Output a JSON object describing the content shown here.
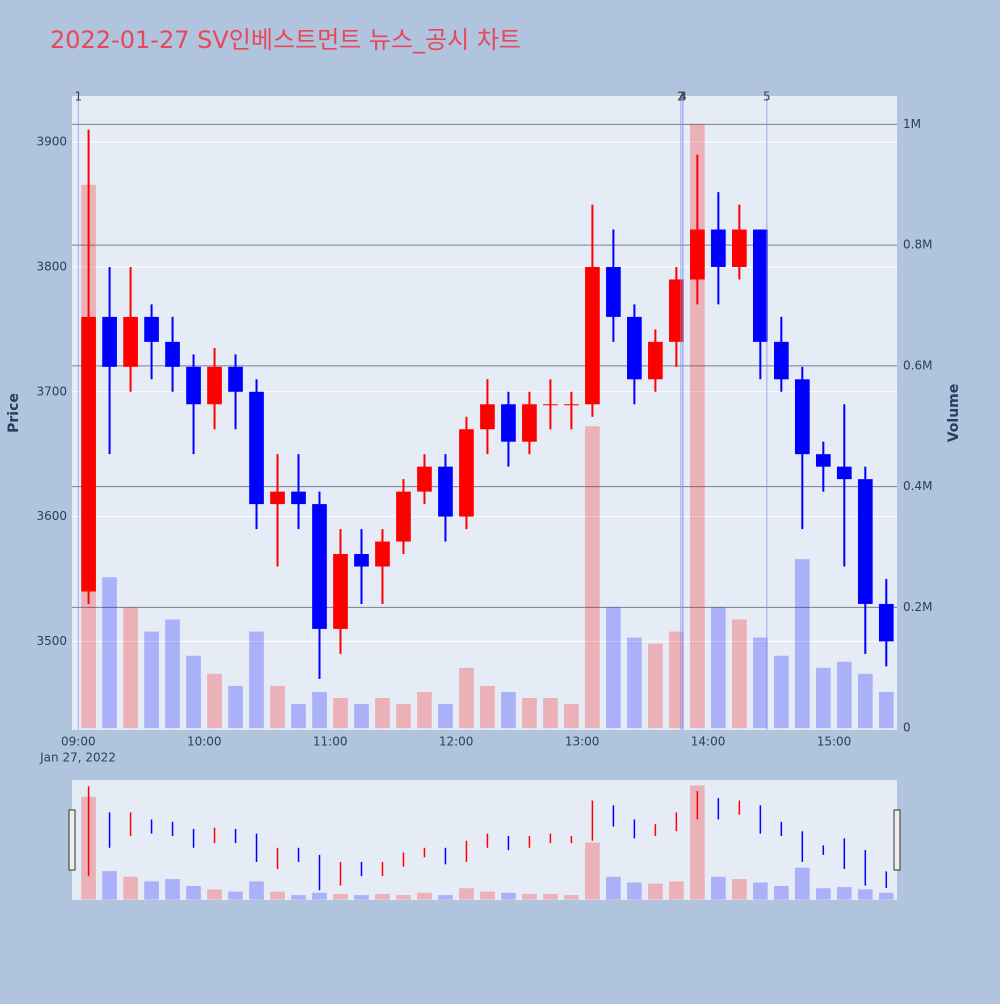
{
  "chart_data": {
    "type": "candlestick",
    "title": "2022-01-27 SV인베스트먼트 뉴스_공시 차트",
    "y_label": "Price",
    "y2_label": "Volume",
    "date_label": "Jan 27, 2022",
    "x": [
      "09:00",
      "09:10",
      "09:20",
      "09:30",
      "09:40",
      "09:50",
      "10:00",
      "10:10",
      "10:20",
      "10:30",
      "10:40",
      "10:50",
      "11:00",
      "11:10",
      "11:20",
      "11:30",
      "11:40",
      "11:50",
      "12:00",
      "12:10",
      "12:20",
      "12:30",
      "12:40",
      "12:50",
      "13:00",
      "13:10",
      "13:20",
      "13:30",
      "13:40",
      "13:50",
      "14:00",
      "14:10",
      "14:20",
      "14:30",
      "14:40",
      "14:50",
      "15:00",
      "15:10",
      "15:20"
    ],
    "open": [
      3540,
      3760,
      3720,
      3760,
      3740,
      3720,
      3690,
      3720,
      3700,
      3610,
      3620,
      3610,
      3510,
      3570,
      3560,
      3580,
      3620,
      3640,
      3600,
      3670,
      3690,
      3660,
      3690,
      3690,
      3690,
      3800,
      3760,
      3710,
      3740,
      3790,
      3830,
      3800,
      3830,
      3740,
      3710,
      3650,
      3640,
      3630,
      3530
    ],
    "high": [
      3910,
      3800,
      3800,
      3770,
      3760,
      3730,
      3735,
      3730,
      3710,
      3650,
      3650,
      3620,
      3590,
      3590,
      3590,
      3630,
      3650,
      3650,
      3680,
      3710,
      3700,
      3700,
      3710,
      3700,
      3850,
      3830,
      3770,
      3750,
      3800,
      3890,
      3860,
      3850,
      3830,
      3760,
      3720,
      3660,
      3690,
      3640,
      3550
    ],
    "low": [
      3530,
      3650,
      3700,
      3710,
      3700,
      3650,
      3670,
      3670,
      3590,
      3560,
      3590,
      3470,
      3490,
      3530,
      3530,
      3570,
      3610,
      3580,
      3590,
      3650,
      3640,
      3650,
      3670,
      3670,
      3680,
      3740,
      3690,
      3700,
      3720,
      3770,
      3770,
      3790,
      3710,
      3700,
      3590,
      3620,
      3560,
      3490,
      3480
    ],
    "close": [
      3760,
      3720,
      3760,
      3740,
      3720,
      3690,
      3720,
      3700,
      3610,
      3620,
      3610,
      3510,
      3570,
      3560,
      3580,
      3620,
      3640,
      3600,
      3670,
      3690,
      3660,
      3690,
      3690,
      3690,
      3800,
      3760,
      3710,
      3740,
      3790,
      3830,
      3800,
      3830,
      3740,
      3710,
      3650,
      3640,
      3630,
      3530,
      3500
    ],
    "volume": [
      900000,
      250000,
      200000,
      160000,
      180000,
      120000,
      90000,
      70000,
      160000,
      70000,
      40000,
      60000,
      50000,
      40000,
      50000,
      40000,
      60000,
      40000,
      100000,
      70000,
      60000,
      50000,
      50000,
      40000,
      500000,
      200000,
      150000,
      140000,
      160000,
      1000000,
      200000,
      180000,
      150000,
      120000,
      280000,
      100000,
      110000,
      90000,
      60000
    ],
    "up_color": "#ff0000",
    "down_color": "#0000ff",
    "news": [
      {
        "x": "09:00",
        "label": "1"
      },
      {
        "x": "13:47",
        "label": "2"
      },
      {
        "x": "13:48",
        "label": "3"
      },
      {
        "x": "13:48",
        "label": "4"
      },
      {
        "x": "14:28",
        "label": "5"
      }
    ],
    "xlim": [
      "08:57",
      "15:30"
    ],
    "xticks": [
      "09:00",
      "10:00",
      "11:00",
      "12:00",
      "13:00",
      "14:00",
      "15:00"
    ],
    "ylim": [
      3429,
      3937
    ],
    "yticks": [
      3500,
      3600,
      3700,
      3800,
      3900
    ],
    "y2lim": [
      -3000,
      1047000
    ],
    "y2ticks": [
      0,
      {
        "value": 200000,
        "label": "0.2M"
      },
      {
        "value": 400000,
        "label": "0.4M"
      },
      {
        "value": 600000,
        "label": "0.6M"
      },
      {
        "value": 800000,
        "label": "0.8M"
      },
      {
        "value": 1000000,
        "label": "1M"
      }
    ],
    "grid": true,
    "range_slider": true
  }
}
